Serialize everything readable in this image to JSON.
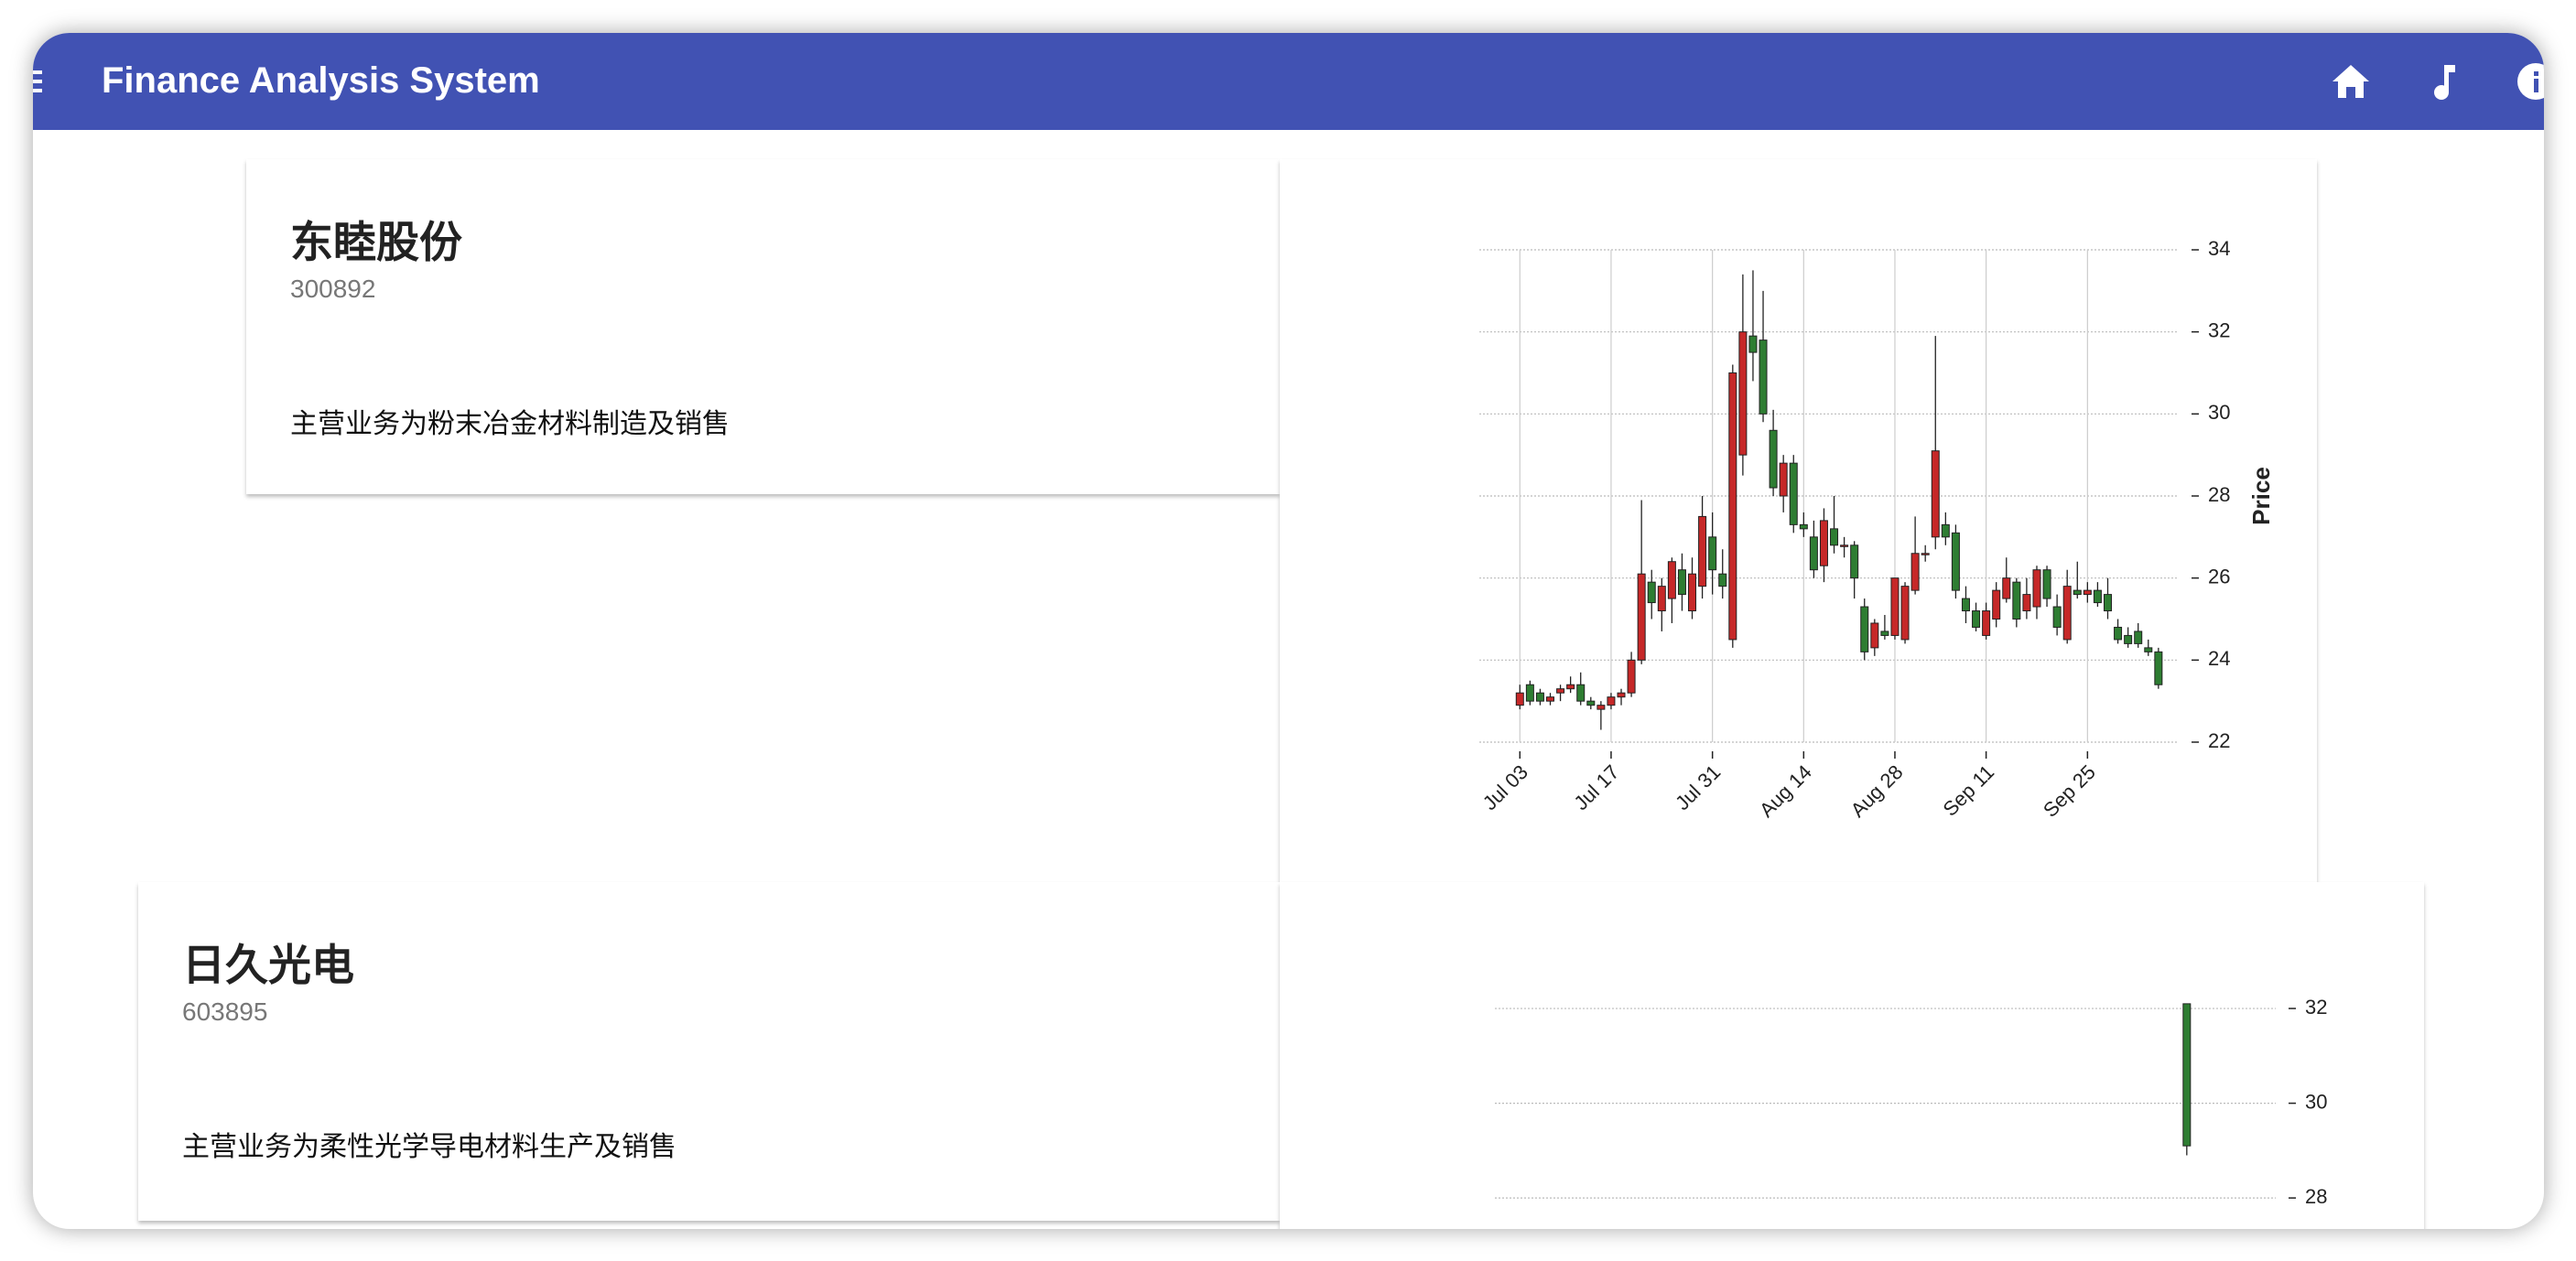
{
  "app": {
    "title": "Finance Analysis System"
  },
  "stocks": [
    {
      "name": "东睦股份",
      "code": "300892",
      "description": "主营业务为粉末冶金材料制造及销售",
      "chart_data": {
        "type": "candlestick",
        "y_label": "Price",
        "up_color": "#c62828",
        "down_color": "#2e7d32",
        "grid": true,
        "open": [
          22.9,
          23.4,
          23.2,
          23.0,
          23.2,
          23.3,
          23.4,
          23.0,
          22.8,
          22.9,
          23.1,
          23.2,
          24.0,
          25.9,
          25.2,
          25.5,
          26.2,
          25.2,
          25.8,
          27.0,
          26.1,
          24.5,
          29.0,
          31.9,
          31.8,
          29.6,
          28.0,
          28.8,
          27.3,
          27.0,
          26.3,
          27.2,
          26.8,
          26.8,
          25.3,
          24.3,
          24.7,
          24.6,
          24.5,
          25.7,
          26.6,
          27.0,
          27.3,
          27.1,
          25.5,
          25.2,
          24.6,
          25.0,
          25.5,
          25.9,
          25.2,
          25.3,
          26.2,
          25.3,
          24.5,
          25.7,
          25.6,
          25.7,
          25.6,
          24.8,
          24.6,
          24.7,
          24.3,
          24.2
        ],
        "high": [
          23.4,
          23.5,
          23.3,
          23.2,
          23.4,
          23.6,
          23.7,
          23.1,
          23.0,
          23.2,
          23.3,
          24.2,
          27.9,
          26.2,
          26.0,
          26.5,
          26.6,
          26.5,
          28.0,
          27.6,
          26.7,
          31.2,
          33.4,
          33.5,
          33.0,
          30.1,
          29.0,
          29.0,
          27.6,
          27.4,
          27.7,
          28.0,
          27.0,
          26.9,
          25.5,
          25.0,
          25.1,
          26.0,
          25.9,
          27.5,
          26.8,
          31.9,
          27.6,
          27.3,
          25.8,
          25.4,
          25.4,
          25.9,
          26.5,
          26.0,
          26.0,
          26.3,
          26.3,
          25.6,
          26.2,
          26.4,
          25.9,
          25.9,
          26.0,
          25.0,
          24.8,
          24.9,
          24.5,
          24.3
        ],
        "low": [
          22.8,
          22.9,
          22.9,
          22.9,
          23.0,
          23.2,
          22.9,
          22.8,
          22.3,
          22.8,
          22.9,
          23.1,
          23.9,
          25.0,
          24.7,
          24.9,
          25.2,
          25.0,
          25.5,
          25.6,
          25.5,
          24.3,
          28.5,
          30.8,
          29.8,
          28.0,
          27.6,
          27.1,
          27.0,
          26.0,
          25.9,
          26.6,
          26.5,
          25.5,
          24.0,
          24.1,
          24.5,
          24.5,
          24.4,
          25.6,
          26.4,
          26.7,
          26.8,
          25.5,
          24.9,
          24.7,
          24.5,
          24.8,
          25.4,
          24.8,
          25.0,
          25.0,
          25.3,
          24.6,
          24.4,
          25.5,
          25.4,
          25.3,
          25.0,
          24.4,
          24.3,
          24.3,
          24.1,
          23.3
        ],
        "close": [
          23.2,
          23.0,
          23.0,
          23.1,
          23.3,
          23.4,
          23.0,
          22.9,
          22.9,
          23.1,
          23.2,
          24.0,
          26.1,
          25.4,
          25.8,
          26.4,
          25.6,
          26.1,
          27.5,
          26.2,
          25.8,
          31.0,
          32.0,
          31.5,
          30.0,
          28.2,
          28.8,
          27.3,
          27.2,
          26.2,
          27.4,
          26.8,
          26.8,
          26.0,
          24.2,
          24.9,
          24.6,
          26.0,
          25.8,
          26.6,
          26.6,
          29.1,
          27.0,
          25.7,
          25.2,
          24.8,
          25.2,
          25.7,
          26.0,
          25.0,
          25.6,
          26.2,
          25.5,
          24.8,
          25.8,
          25.6,
          25.7,
          25.4,
          25.2,
          24.5,
          24.4,
          24.4,
          24.2,
          23.4
        ],
        "xlim": [
          -4,
          65
        ],
        "xticks": [
          {
            "value": 0,
            "label": "Jul 03"
          },
          {
            "value": 9,
            "label": "Jul 17"
          },
          {
            "value": 19,
            "label": "Jul 31"
          },
          {
            "value": 28,
            "label": "Aug 14"
          },
          {
            "value": 37,
            "label": "Aug 28"
          },
          {
            "value": 46,
            "label": "Sep 11"
          },
          {
            "value": 56,
            "label": "Sep 25"
          }
        ],
        "ylim": [
          22,
          34
        ],
        "yticks": [
          22,
          24,
          26,
          28,
          30,
          32,
          34
        ]
      }
    },
    {
      "name": "日久光电",
      "code": "603895",
      "description": "主营业务为柔性光学导电材料生产及销售",
      "chart_data": {
        "type": "candlestick",
        "up_color": "#c62828",
        "down_color": "#2e7d32",
        "grid": true,
        "open": [
          32.1
        ],
        "high": [
          32.1
        ],
        "low": [
          28.9
        ],
        "close": [
          29.1
        ],
        "xlim": [
          -7,
          0.9
        ],
        "ylim": [
          27.5,
          32.6
        ],
        "yticks": [
          28,
          30,
          32
        ]
      }
    }
  ]
}
